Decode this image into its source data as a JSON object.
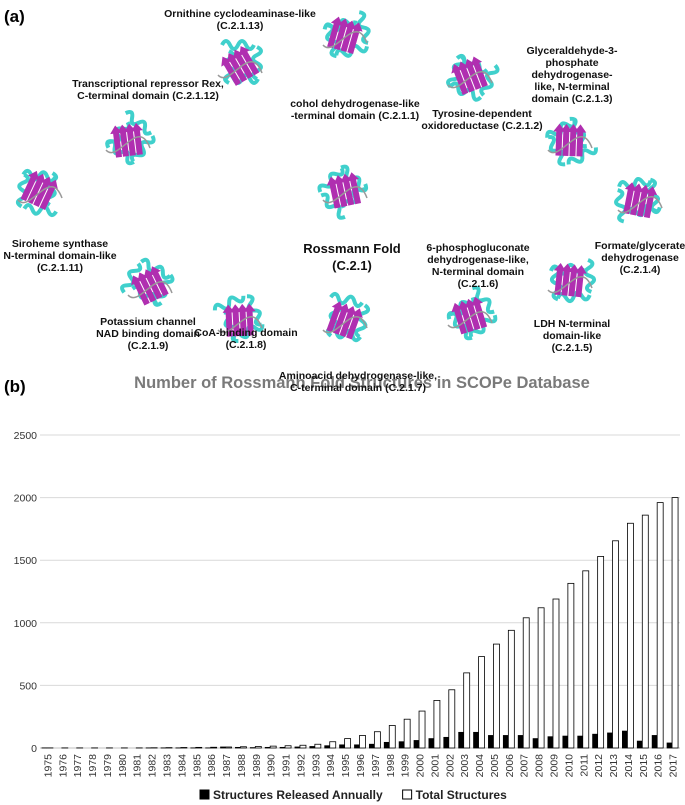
{
  "panel_labels": [
    "(a)",
    "(b)"
  ],
  "structures": [
    {
      "lines": [
        "Ornithine cyclodeaminase-like",
        "(C.2.1.13)"
      ]
    },
    {
      "lines": [
        "Transcriptional repressor Rex,",
        "C-terminal domain (C.2.1.12)"
      ]
    },
    {
      "lines": [
        "cohol dehydrogenase-like",
        "-terminal domain (C.2.1.1)"
      ]
    },
    {
      "lines": [
        "Tyrosine-dependent",
        "oxidoreductase (C.2.1.2)"
      ]
    },
    {
      "lines": [
        "Glyceraldehyde-3-",
        "phosphate",
        "dehydrogenase-",
        "like, N-terminal",
        "domain (C.2.1.3)"
      ]
    },
    {
      "lines": [
        "Siroheme synthase",
        "N-terminal domain-like",
        "(C.2.1.11)"
      ]
    },
    {
      "lines": [
        "Rossmann Fold",
        "(C.2.1)"
      ]
    },
    {
      "lines": [
        "6-phosphogluconate",
        "dehydrogenase-like,",
        "N-terminal domain",
        "(C.2.1.6)"
      ]
    },
    {
      "lines": [
        "Formate/glycerate",
        "dehydrogenase",
        "(C.2.1.4)"
      ]
    },
    {
      "lines": [
        "Potassium channel",
        "NAD binding domain",
        "(C.2.1.9)"
      ]
    },
    {
      "lines": [
        "CoA-binding domain",
        "(C.2.1.8)"
      ]
    },
    {
      "lines": [
        "Aminoacid dehydrogenase-like,",
        "C-terminal domain (C.2.1.7)"
      ]
    },
    {
      "lines": [
        "LDH N-terminal",
        "domain-like",
        "(C.2.1.5)"
      ]
    }
  ],
  "chart_data": {
    "type": "bar",
    "title": "Number of Rossmann Fold Structures in SCOPe Database",
    "categories": [
      "1975",
      "1976",
      "1977",
      "1978",
      "1979",
      "1980",
      "1981",
      "1982",
      "1983",
      "1984",
      "1985",
      "1986",
      "1987",
      "1988",
      "1989",
      "1990",
      "1991",
      "1992",
      "1993",
      "1994",
      "1995",
      "1996",
      "1997",
      "1998",
      "1999",
      "2000",
      "2001",
      "2002",
      "2003",
      "2004",
      "2005",
      "2006",
      "2007",
      "2008",
      "2009",
      "2010",
      "2011",
      "2012",
      "2013",
      "2014",
      "2015",
      "2016",
      "2017"
    ],
    "series": [
      {
        "name": "Structures Released Annually",
        "color": "#000000",
        "values": [
          1,
          0,
          0,
          0,
          0,
          0,
          0,
          1,
          1,
          1,
          1,
          1,
          8,
          5,
          3,
          5,
          5,
          8,
          12,
          18,
          25,
          25,
          30,
          45,
          50,
          60,
          75,
          85,
          125,
          125,
          100,
          100,
          100,
          75,
          90,
          95,
          95,
          110,
          120,
          135,
          55,
          100,
          40
        ]
      },
      {
        "name": "Total Structures",
        "color": "#ffffff",
        "values": [
          1,
          1,
          1,
          1,
          1,
          1,
          1,
          2,
          3,
          4,
          5,
          6,
          8,
          10,
          12,
          15,
          18,
          22,
          30,
          50,
          75,
          100,
          130,
          180,
          230,
          295,
          380,
          465,
          600,
          730,
          830,
          940,
          1040,
          1120,
          1190,
          1315,
          1415,
          1530,
          1655,
          1795,
          1860,
          1960,
          2000
        ]
      }
    ],
    "ylim": [
      0,
      2500
    ],
    "yticks": [
      0,
      500,
      1000,
      1500,
      2000,
      2500
    ],
    "grid": true,
    "legend": "bottom"
  }
}
